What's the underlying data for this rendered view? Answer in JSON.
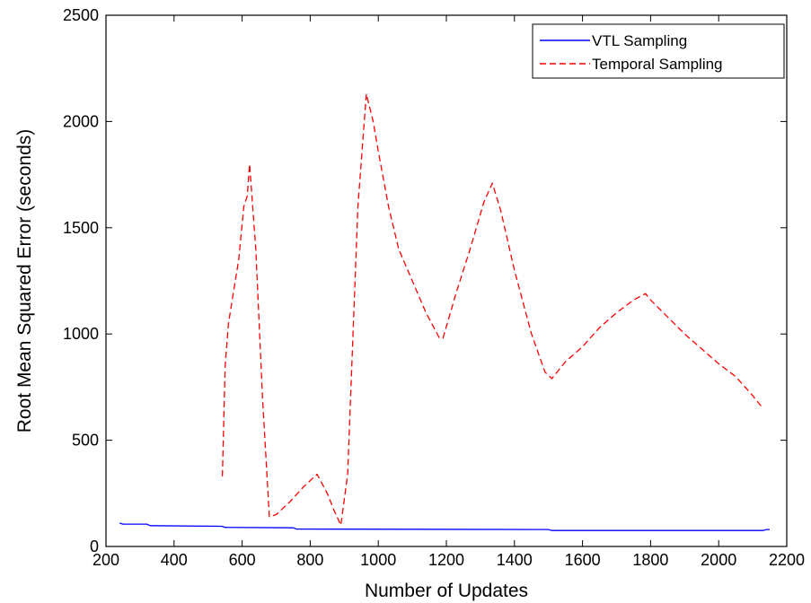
{
  "chart_data": {
    "type": "line",
    "xlabel": "Number of Updates",
    "ylabel": "Root Mean Squared Error (seconds)",
    "xlim": [
      200,
      2200
    ],
    "ylim": [
      0,
      2500
    ],
    "xticks": [
      200,
      400,
      600,
      800,
      1000,
      1200,
      1400,
      1600,
      1800,
      2000,
      2200
    ],
    "yticks": [
      0,
      500,
      1000,
      1500,
      2000,
      2500
    ],
    "grid": false,
    "legend_position": "top-right",
    "series": [
      {
        "name": "VTL Sampling",
        "color": "#0000ff",
        "style": "solid",
        "x": [
          240,
          250,
          320,
          330,
          540,
          550,
          750,
          760,
          1500,
          1510,
          2130,
          2140,
          2150
        ],
        "y": [
          110,
          105,
          105,
          98,
          95,
          90,
          88,
          82,
          80,
          75,
          75,
          80,
          80
        ]
      },
      {
        "name": "Temporal Sampling",
        "color": "#ff0000",
        "style": "dashed",
        "x": [
          542,
          550,
          560,
          575,
          590,
          605,
          615,
          622,
          640,
          660,
          680,
          700,
          740,
          780,
          820,
          850,
          870,
          890,
          910,
          940,
          965,
          985,
          1000,
          1030,
          1060,
          1100,
          1140,
          1180,
          1190,
          1230,
          1270,
          1310,
          1335,
          1360,
          1400,
          1450,
          1490,
          1510,
          1550,
          1600,
          1650,
          1700,
          1750,
          1785,
          1800,
          1850,
          1900,
          1950,
          2000,
          2050,
          2100,
          2130
        ],
        "y": [
          330,
          850,
          1050,
          1200,
          1350,
          1600,
          1650,
          1800,
          1400,
          700,
          140,
          150,
          210,
          280,
          340,
          250,
          170,
          100,
          340,
          1600,
          2130,
          2000,
          1860,
          1600,
          1400,
          1250,
          1100,
          980,
          980,
          1200,
          1400,
          1620,
          1710,
          1580,
          1300,
          1000,
          820,
          790,
          870,
          940,
          1030,
          1100,
          1160,
          1190,
          1160,
          1080,
          1000,
          930,
          860,
          800,
          710,
          650
        ]
      }
    ]
  }
}
